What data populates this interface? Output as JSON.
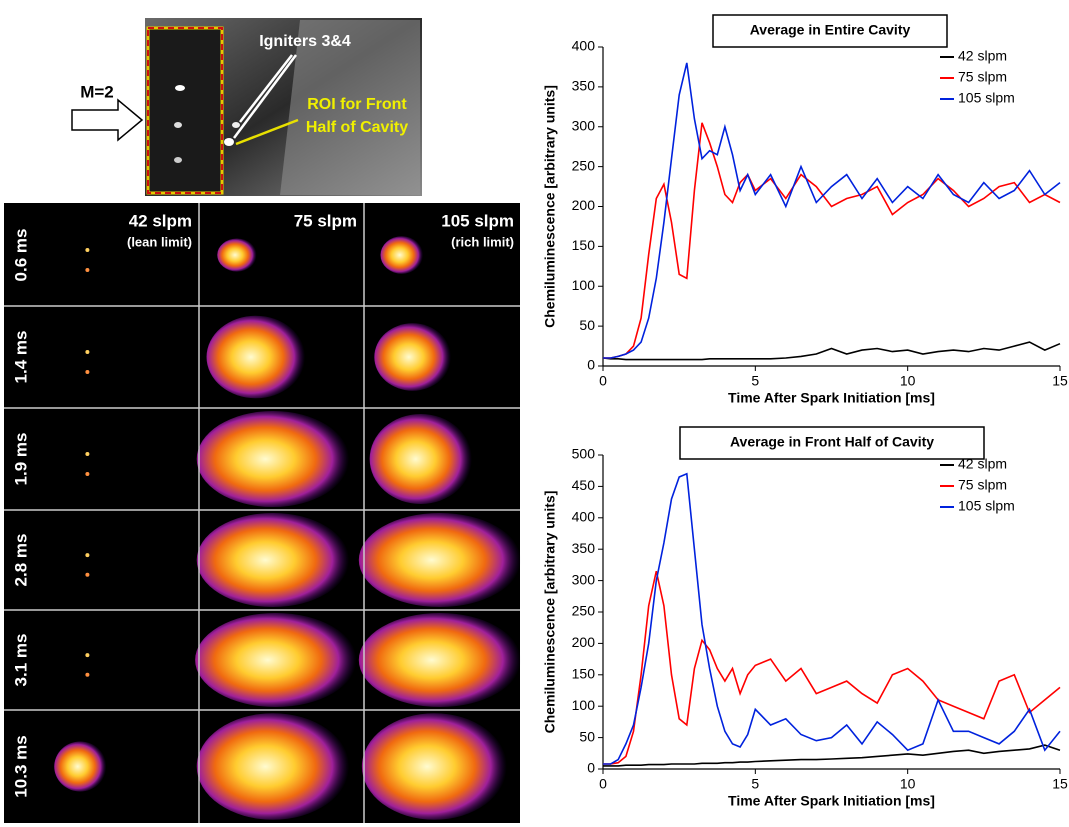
{
  "figure_panel": {
    "inset": {
      "flow_label": "M=2",
      "igniter_label": "Igniters 3&4",
      "roi_label": [
        "ROI for Front",
        "Half of Cavity"
      ]
    },
    "columns": [
      {
        "label": "42 slpm",
        "note": "(lean limit)"
      },
      {
        "label": "75 slpm"
      },
      {
        "label": "105 slpm",
        "note": "(rich limit)"
      }
    ],
    "rows": [
      "0.6 ms",
      "1.4 ms",
      "1.9 ms",
      "2.8 ms",
      "3.1 ms",
      "10.3 ms"
    ]
  },
  "chart_data": [
    {
      "type": "line",
      "title": "Average in Entire Cavity",
      "x_label": "Time After Spark Initiation [ms]",
      "y_label": "Chemiluminescence [arbitrary units]",
      "x": [
        0,
        0.25,
        0.5,
        0.75,
        1,
        1.25,
        1.5,
        1.75,
        2,
        2.25,
        2.5,
        2.75,
        3,
        3.25,
        3.5,
        3.75,
        4,
        4.25,
        4.5,
        4.75,
        5,
        5.5,
        6,
        6.5,
        7,
        7.5,
        8,
        8.5,
        9,
        9.5,
        10,
        10.5,
        11,
        11.5,
        12,
        12.5,
        13,
        13.5,
        14,
        14.5,
        15
      ],
      "series": [
        {
          "name": "42 slpm",
          "color": "#000000",
          "values": [
            10,
            9,
            9,
            8,
            8,
            8,
            8,
            8,
            8,
            8,
            8,
            8,
            8,
            8,
            9,
            9,
            9,
            9,
            9,
            9,
            9,
            9,
            10,
            12,
            15,
            22,
            15,
            20,
            22,
            18,
            20,
            15,
            18,
            20,
            18,
            22,
            20,
            25,
            30,
            20,
            28
          ]
        },
        {
          "name": "75 slpm",
          "color": "#ff0000",
          "values": [
            10,
            10,
            12,
            15,
            25,
            60,
            140,
            210,
            228,
            180,
            115,
            110,
            220,
            305,
            280,
            250,
            215,
            205,
            230,
            240,
            220,
            235,
            210,
            240,
            225,
            200,
            210,
            215,
            225,
            190,
            205,
            215,
            235,
            220,
            200,
            210,
            225,
            230,
            205,
            215,
            205
          ]
        },
        {
          "name": "105 slpm",
          "color": "#0022dd",
          "values": [
            10,
            10,
            12,
            15,
            20,
            30,
            60,
            110,
            180,
            260,
            340,
            380,
            310,
            260,
            270,
            265,
            300,
            265,
            220,
            240,
            215,
            240,
            200,
            250,
            205,
            225,
            240,
            210,
            235,
            205,
            225,
            210,
            240,
            215,
            205,
            230,
            210,
            220,
            245,
            215,
            230
          ]
        }
      ],
      "xlim": [
        0,
        15
      ],
      "xticks": [
        0,
        5,
        10,
        15
      ],
      "ylim": [
        0,
        400
      ],
      "yticks": [
        0,
        50,
        100,
        150,
        200,
        250,
        300,
        350,
        400
      ],
      "grid": false,
      "legend": "upper right"
    },
    {
      "type": "line",
      "title": "Average in Front Half of Cavity",
      "x_label": "Time After Spark Initiation [ms]",
      "y_label": "Chemiluminescence [arbitrary units]",
      "x": [
        0,
        0.25,
        0.5,
        0.75,
        1,
        1.25,
        1.5,
        1.75,
        2,
        2.25,
        2.5,
        2.75,
        3,
        3.25,
        3.5,
        3.75,
        4,
        4.25,
        4.5,
        4.75,
        5,
        5.5,
        6,
        6.5,
        7,
        7.5,
        8,
        8.5,
        9,
        9.5,
        10,
        10.5,
        11,
        11.5,
        12,
        12.5,
        13,
        13.5,
        14,
        14.5,
        15
      ],
      "series": [
        {
          "name": "42 slpm",
          "color": "#000000",
          "values": [
            5,
            5,
            5,
            6,
            6,
            6,
            7,
            7,
            7,
            8,
            8,
            8,
            8,
            9,
            9,
            9,
            10,
            10,
            11,
            11,
            12,
            13,
            14,
            15,
            15,
            16,
            17,
            18,
            20,
            22,
            24,
            22,
            25,
            28,
            30,
            25,
            28,
            30,
            32,
            38,
            30
          ]
        },
        {
          "name": "75 slpm",
          "color": "#ff0000",
          "values": [
            8,
            8,
            10,
            20,
            60,
            150,
            260,
            315,
            260,
            150,
            80,
            70,
            160,
            205,
            190,
            160,
            140,
            160,
            120,
            150,
            165,
            175,
            140,
            160,
            120,
            130,
            140,
            120,
            105,
            150,
            160,
            140,
            110,
            100,
            90,
            80,
            140,
            150,
            90,
            110,
            130
          ]
        },
        {
          "name": "105 slpm",
          "color": "#0022dd",
          "values": [
            8,
            8,
            15,
            40,
            70,
            130,
            200,
            300,
            360,
            430,
            465,
            470,
            350,
            230,
            160,
            100,
            60,
            40,
            35,
            55,
            95,
            70,
            80,
            55,
            45,
            50,
            70,
            40,
            75,
            55,
            30,
            40,
            110,
            60,
            60,
            50,
            40,
            60,
            95,
            30,
            60
          ]
        }
      ],
      "xlim": [
        0,
        15
      ],
      "xticks": [
        0,
        5,
        10,
        15
      ],
      "ylim": [
        0,
        500
      ],
      "yticks": [
        0,
        50,
        100,
        150,
        200,
        250,
        300,
        350,
        400,
        450,
        500
      ],
      "grid": false,
      "legend": "upper right"
    }
  ]
}
